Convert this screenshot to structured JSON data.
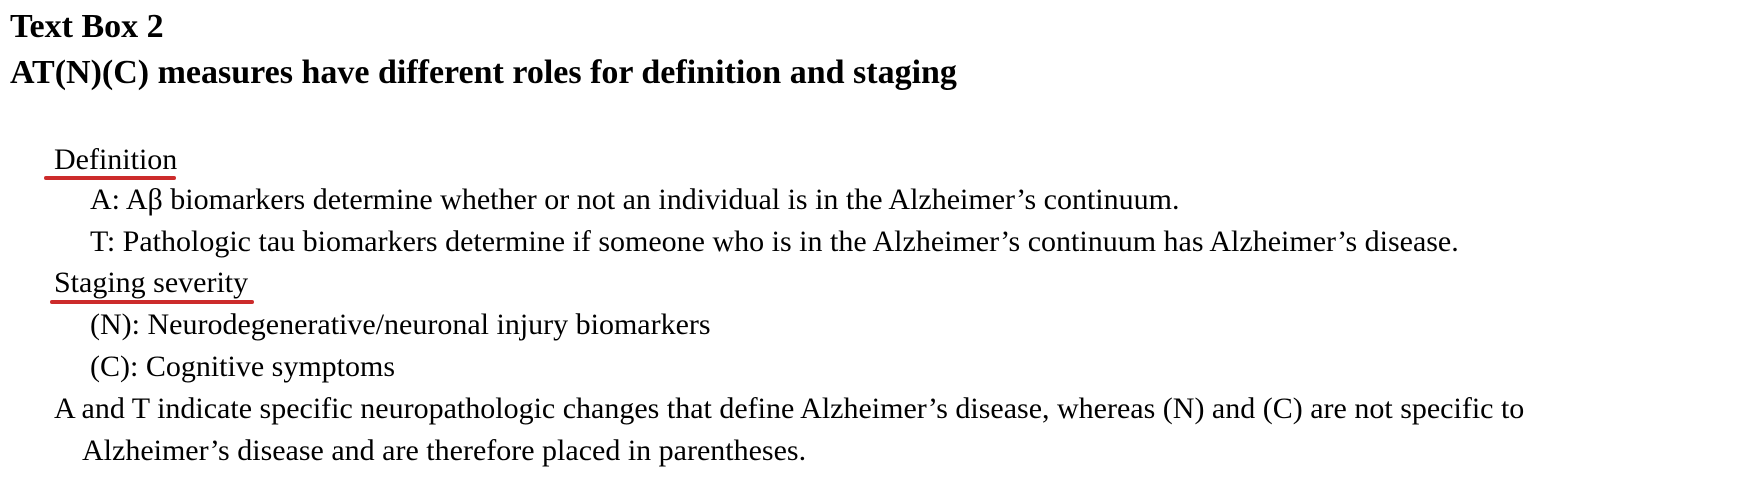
{
  "box": {
    "label": "Text Box 2",
    "title": "AT(N)(C) measures have different roles for definition and staging"
  },
  "definition": {
    "heading": "Definition",
    "items": [
      "A: Aβ biomarkers determine whether or not an individual is in the Alzheimer’s continuum.",
      "T: Pathologic tau biomarkers determine if someone who is in the Alzheimer’s continuum has Alzheimer’s disease."
    ]
  },
  "staging": {
    "heading": "Staging severity",
    "items": [
      "(N): Neurodegenerative/neuronal injury biomarkers",
      "(C): Cognitive symptoms"
    ]
  },
  "summary": {
    "line1": "A and T indicate specific neuropathologic changes that define Alzheimer’s disease, whereas (N) and (C) are not specific to",
    "line2": "Alzheimer’s disease and are therefore placed in parentheses."
  },
  "colors": {
    "underline": "#cc2b2b"
  }
}
